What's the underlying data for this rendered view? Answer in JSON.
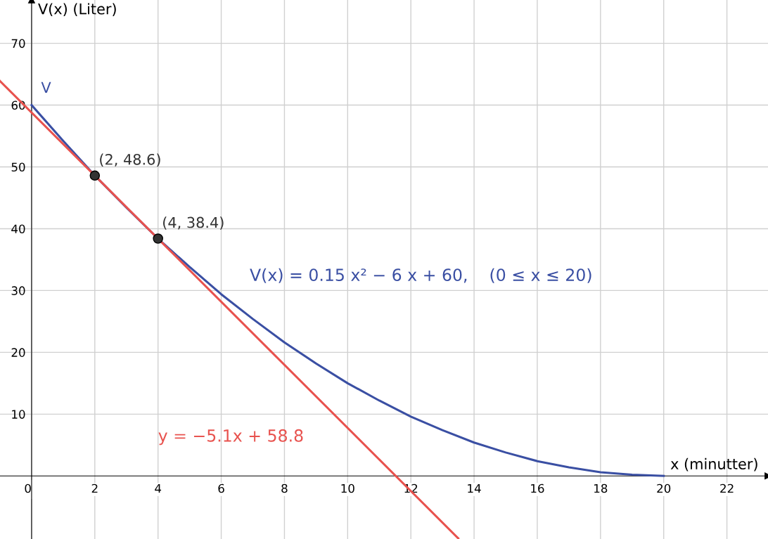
{
  "chart_data": {
    "type": "line",
    "xlabel": "x (minutter)",
    "ylabel": "V(x) (Liter)",
    "xlim": [
      -1,
      23.3
    ],
    "ylim": [
      -10.2,
      77
    ],
    "xticks": [
      0,
      2,
      4,
      6,
      8,
      10,
      12,
      14,
      16,
      18,
      20,
      22
    ],
    "yticks": [
      10,
      20,
      30,
      40,
      50,
      60,
      70
    ],
    "grid": true,
    "series": [
      {
        "name": "V",
        "color": "#3a4fa3",
        "x": [
          0,
          1,
          2,
          3,
          4,
          5,
          6,
          7,
          8,
          9,
          10,
          11,
          12,
          13,
          14,
          15,
          16,
          17,
          18,
          19,
          20
        ],
        "values": [
          60,
          54.2,
          48.6,
          43.4,
          38.4,
          33.8,
          29.4,
          25.4,
          21.6,
          18.2,
          15,
          12.2,
          9.6,
          7.4,
          5.4,
          3.8,
          2.4,
          1.4,
          0.6,
          0.2,
          0
        ]
      },
      {
        "color": "#e8524e",
        "x": [
          -1,
          13.5
        ],
        "values": [
          63.9,
          -10.1
        ]
      },
      {
        "type": "scatter",
        "color": "#333333",
        "marker": "circle",
        "x": [
          2,
          4
        ],
        "values": [
          48.6,
          38.4
        ]
      }
    ],
    "annotations": [
      {
        "text": "(2, 48.6)",
        "x": 2,
        "y": 48.6
      },
      {
        "text": "(4, 38.4)",
        "x": 4,
        "y": 38.4
      },
      "V(x) = 0.15 x² − 6 x + 60,    (0 ≤ x ≤ 20)",
      "y = −5.1x + 58.8"
    ]
  }
}
